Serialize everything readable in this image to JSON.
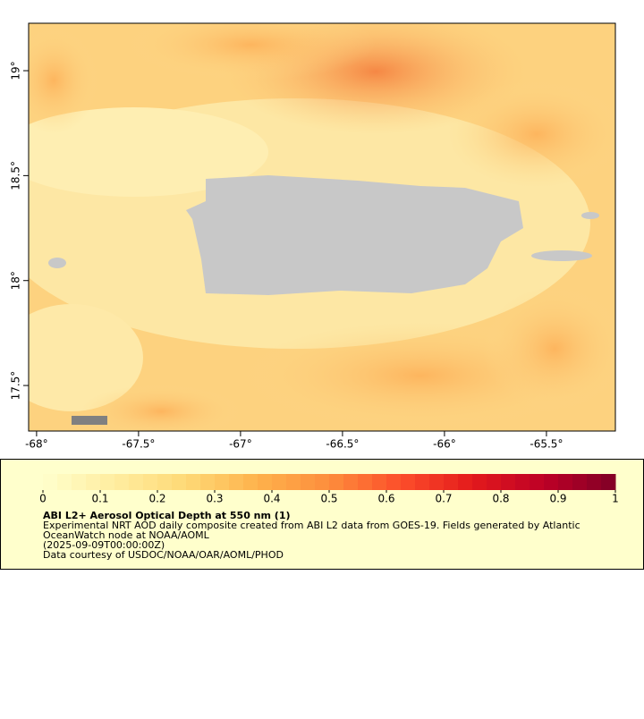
{
  "map": {
    "xlim": [
      -68.039,
      -65.162
    ],
    "ylim": [
      17.283,
      19.226
    ],
    "xticks": [
      {
        "value": -68,
        "label": "-68°"
      },
      {
        "value": -67.5,
        "label": "-67.5°"
      },
      {
        "value": -67,
        "label": "-67°"
      },
      {
        "value": -66.5,
        "label": "-66.5°"
      },
      {
        "value": -66,
        "label": "-66°"
      },
      {
        "value": -65.5,
        "label": "-65.5°"
      }
    ],
    "yticks": [
      {
        "value": 17.5,
        "label": "17.5°"
      },
      {
        "value": 18,
        "label": "18°"
      },
      {
        "value": 18.5,
        "label": "18.5°"
      },
      {
        "value": 19,
        "label": "19°"
      }
    ]
  },
  "colorbar": {
    "lim": [
      0,
      1
    ],
    "ticks": [
      0,
      0.1,
      0.2,
      0.3,
      0.4,
      0.5,
      0.6,
      0.7,
      0.8,
      0.9,
      1
    ],
    "colors": [
      "#ffffcc",
      "#ffeda0",
      "#fed976",
      "#feb24c",
      "#fd8d3c",
      "#fc4e2a",
      "#e31a1c",
      "#bd0026",
      "#800026"
    ]
  },
  "legend": {
    "title": "ABI L2+ Aerosol Optical Depth at 550 nm (1)",
    "lines": [
      "Experimental NRT AOD daily composite created from ABI L2 data from GOES-19. Fields generated by Atlantic",
      "OceanWatch node at NOAA/AOML",
      "(2025-09-09T00:00:00Z)",
      "Data courtesy of USDOC/NOAA/OAR/AOML/PHOD"
    ]
  }
}
